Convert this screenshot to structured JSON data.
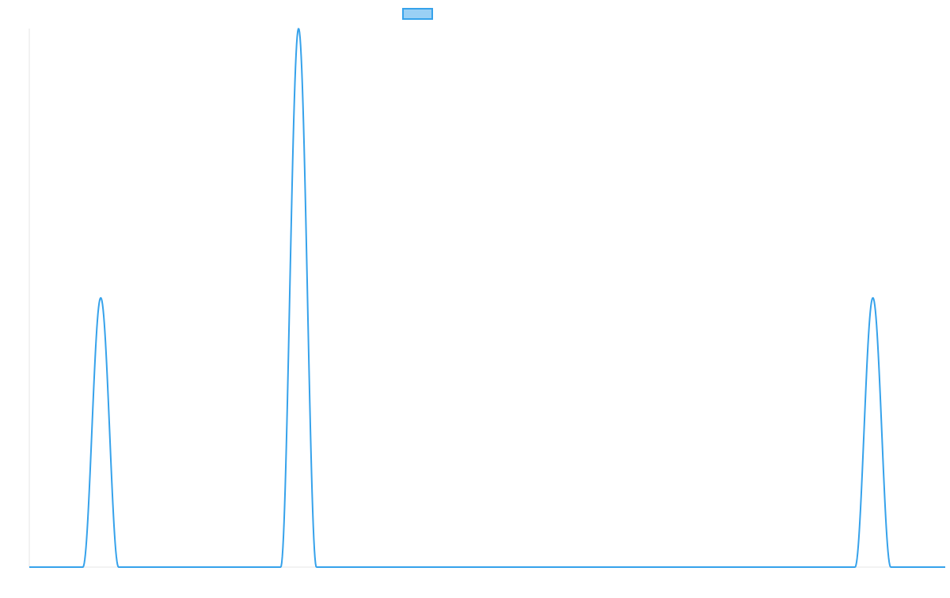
{
  "chart_data": {
    "type": "line",
    "title": "",
    "xlabel": "",
    "ylabel": "",
    "x_range": [
      0,
      1
    ],
    "y_range": [
      0,
      1
    ],
    "grid": false,
    "legend_position": "top",
    "series": [
      {
        "label": "",
        "color": "#36a2eb",
        "fill_color": "#9ad0f5",
        "peaks": [
          {
            "center": 0.078,
            "height": 0.5,
            "half_width": 0.0195
          },
          {
            "center": 0.294,
            "height": 1.0,
            "half_width": 0.0195
          },
          {
            "center": 0.921,
            "height": 0.5,
            "half_width": 0.0195
          }
        ]
      }
    ]
  }
}
